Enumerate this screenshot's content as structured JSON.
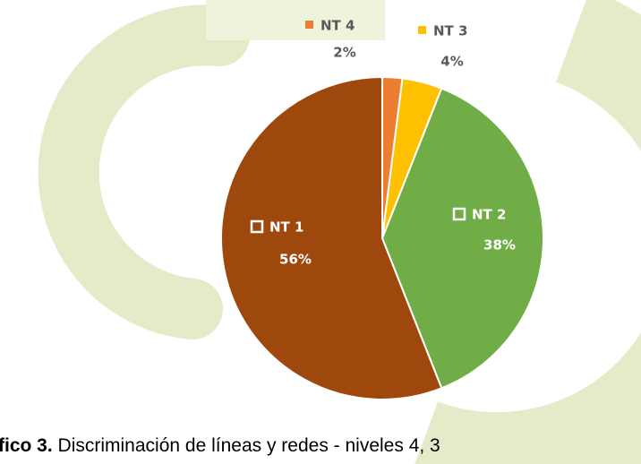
{
  "chart_data": {
    "type": "pie",
    "categories": [
      "NT 4",
      "NT 3",
      "NT 2",
      "NT 1"
    ],
    "values": [
      2,
      4,
      38,
      56
    ],
    "value_labels": [
      "2%",
      "4%",
      "38%",
      "56%"
    ],
    "colors": [
      "#ed7d31",
      "#ffc000",
      "#70ad47",
      "#9e480e"
    ]
  },
  "caption": {
    "label": "fico 3.",
    "text": "Discriminación de líneas y redes - niveles 4, 3"
  }
}
